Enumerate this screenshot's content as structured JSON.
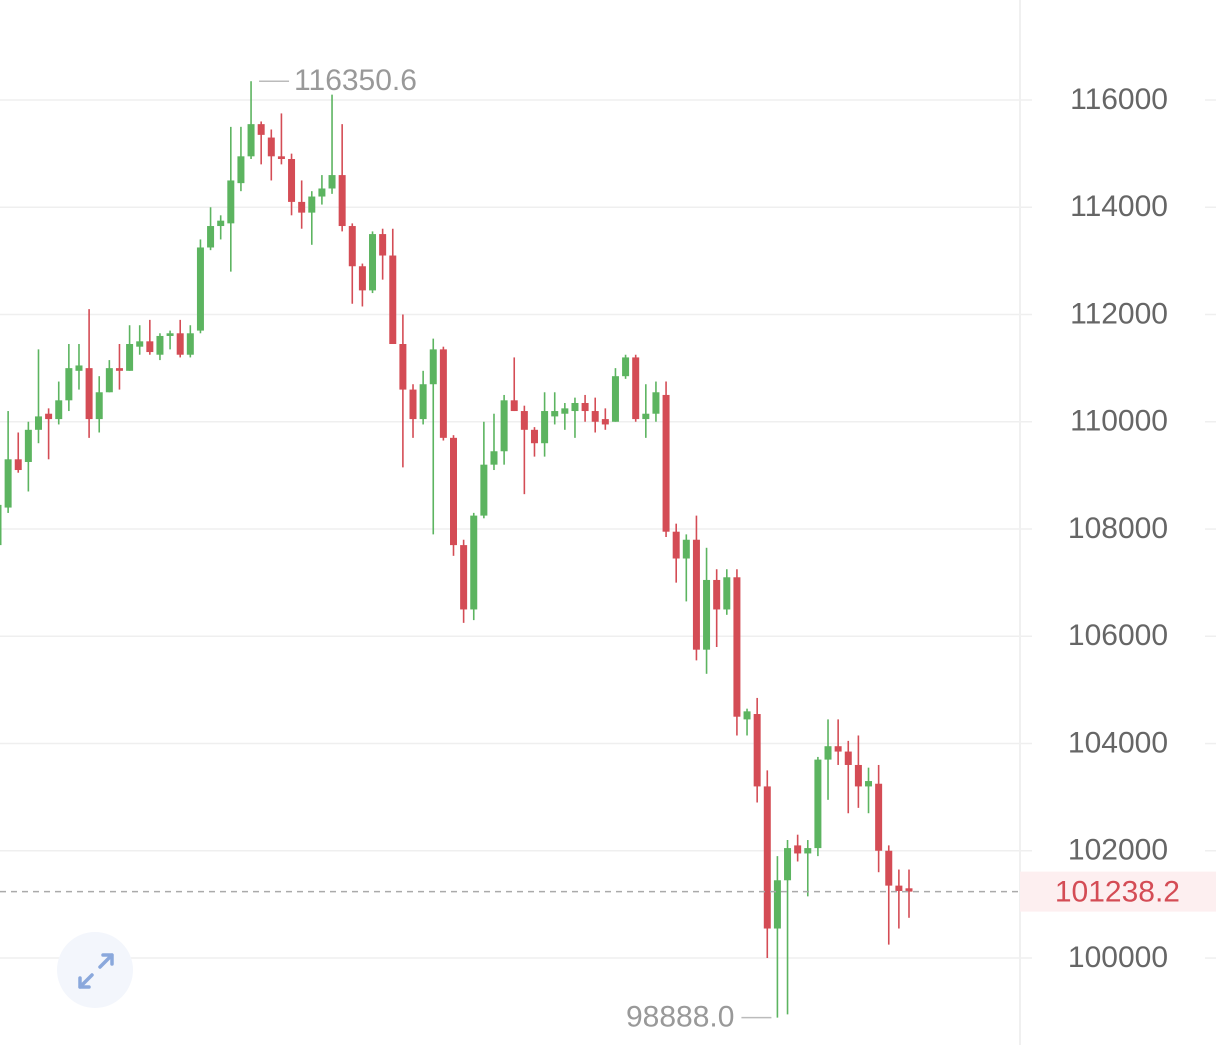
{
  "chart_data": {
    "type": "candlestick",
    "up_color": "#5cb460",
    "down_color": "#d44c55",
    "grid": true,
    "ylim": [
      98378,
      117865
    ],
    "yticks": [
      100000,
      102000,
      104000,
      106000,
      108000,
      110000,
      112000,
      114000,
      116000
    ],
    "open": [
      107700,
      108400,
      109300,
      109250,
      109850,
      110150,
      110050,
      110400,
      110950,
      111000,
      110050,
      110550,
      111000,
      110950,
      111400,
      111500,
      111250,
      111600,
      111650,
      111250,
      111700,
      113250,
      113650,
      113700,
      114450,
      114950,
      115550,
      115300,
      114950,
      114900,
      114100,
      113900,
      114200,
      114350,
      114600,
      113650,
      112900,
      112450,
      113500,
      113100,
      111450,
      110600,
      110050,
      110700,
      111350,
      109700,
      107700,
      106500,
      108250,
      109200,
      109450,
      110400,
      110200,
      109850,
      109600,
      110100,
      110150,
      110200,
      110350,
      110200,
      110050,
      110000,
      110850,
      111200,
      110050,
      110150,
      110500,
      107950,
      107450,
      107800,
      105750,
      107050,
      106500,
      107100,
      104450,
      104550,
      103200,
      100550,
      101450,
      102100,
      101950,
      102050,
      103700,
      103950,
      103850,
      103600,
      103200,
      103250,
      102000,
      101350,
      101300
    ],
    "high": [
      108600,
      110200,
      109800,
      110000,
      111350,
      110250,
      110750,
      111450,
      111450,
      112100,
      110850,
      111150,
      111450,
      111800,
      111800,
      111900,
      111650,
      111700,
      111900,
      111800,
      113400,
      114000,
      113850,
      115500,
      115500,
      116350.6,
      115600,
      115450,
      115750,
      115000,
      114500,
      114300,
      114600,
      116100,
      115550,
      113700,
      112950,
      113550,
      113600,
      113600,
      112000,
      110700,
      110950,
      111550,
      111400,
      109750,
      107800,
      108300,
      110000,
      110150,
      110500,
      111200,
      110300,
      109900,
      110550,
      110550,
      110350,
      110450,
      110500,
      110450,
      110250,
      111000,
      111250,
      111250,
      110700,
      110750,
      110750,
      108100,
      107900,
      108250,
      107650,
      107250,
      107250,
      107250,
      104650,
      104850,
      103500,
      101900,
      102200,
      102300,
      102200,
      103750,
      104450,
      104450,
      104050,
      104150,
      103550,
      103600,
      102100,
      101650,
      101650
    ],
    "low": [
      107500,
      108300,
      109050,
      108700,
      109600,
      109300,
      109950,
      110200,
      110600,
      109700,
      109800,
      110550,
      110600,
      110950,
      111250,
      111250,
      111150,
      111350,
      111200,
      111200,
      111650,
      113200,
      113400,
      112800,
      114300,
      114900,
      114800,
      114500,
      114800,
      113850,
      113600,
      113300,
      114050,
      114250,
      113550,
      112200,
      112150,
      112400,
      112650,
      111450,
      109150,
      109700,
      109950,
      107900,
      109650,
      107500,
      106250,
      106300,
      108200,
      109100,
      109200,
      110200,
      108650,
      109350,
      109350,
      109950,
      109850,
      109700,
      110000,
      109800,
      109850,
      110000,
      110800,
      110000,
      109700,
      110000,
      107850,
      107000,
      106650,
      105550,
      105300,
      105800,
      106400,
      104150,
      104150,
      102900,
      100000,
      98888.0,
      98950,
      101800,
      101150,
      101900,
      102950,
      103600,
      102700,
      102800,
      102700,
      101600,
      100250,
      100550,
      100750
    ],
    "close": [
      108450,
      109300,
      109100,
      109850,
      110100,
      110050,
      110400,
      111000,
      111050,
      110050,
      110550,
      111000,
      110950,
      111450,
      111500,
      111300,
      111600,
      111650,
      111250,
      111650,
      113250,
      113650,
      113750,
      114500,
      114950,
      115550,
      115350,
      114950,
      114900,
      114100,
      113900,
      114200,
      114350,
      114600,
      113650,
      112900,
      112450,
      113500,
      113100,
      111450,
      110600,
      110050,
      110700,
      111350,
      109700,
      107700,
      106500,
      108250,
      109200,
      109450,
      110400,
      110200,
      109850,
      109600,
      110200,
      110200,
      110250,
      110350,
      110200,
      110000,
      109950,
      110850,
      111200,
      110050,
      110150,
      110550,
      107950,
      107450,
      107800,
      105750,
      107050,
      106500,
      107100,
      104500,
      104600,
      103200,
      100550,
      101450,
      102050,
      101950,
      102050,
      103700,
      103950,
      103850,
      103600,
      103200,
      103300,
      102000,
      101350,
      101250,
      101238.2
    ],
    "max_label": {
      "value": 116350.6,
      "label": "116350.6"
    },
    "min_label": {
      "value": 98888.0,
      "label": "98888.0"
    },
    "last_price": {
      "value": 101238.2,
      "label": "101238.2"
    }
  }
}
